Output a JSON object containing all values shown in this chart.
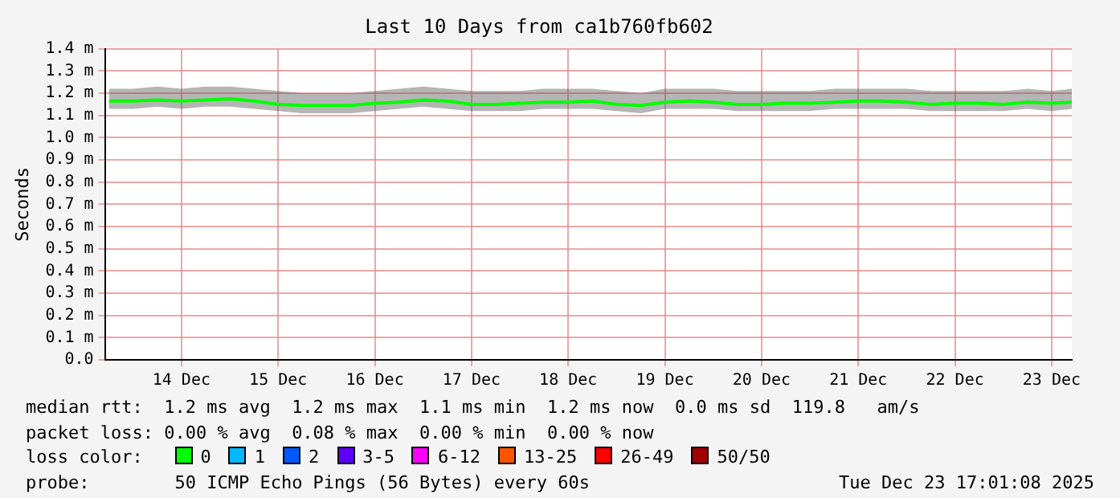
{
  "chart_data": {
    "type": "line",
    "title": "Last 10 Days from ca1b760fb602",
    "ylabel": "Seconds",
    "x": [
      "2025-12-13T18:00",
      "2025-12-14T00:00",
      "2025-12-14T06:00",
      "2025-12-14T12:00",
      "2025-12-14T18:00",
      "2025-12-15T00:00",
      "2025-12-15T06:00",
      "2025-12-15T12:00",
      "2025-12-15T18:00",
      "2025-12-16T00:00",
      "2025-12-16T06:00",
      "2025-12-16T12:00",
      "2025-12-16T18:00",
      "2025-12-17T00:00",
      "2025-12-17T06:00",
      "2025-12-17T12:00",
      "2025-12-17T18:00",
      "2025-12-18T00:00",
      "2025-12-18T06:00",
      "2025-12-18T12:00",
      "2025-12-18T18:00",
      "2025-12-19T00:00",
      "2025-12-19T06:00",
      "2025-12-19T12:00",
      "2025-12-19T18:00",
      "2025-12-20T00:00",
      "2025-12-20T06:00",
      "2025-12-20T12:00",
      "2025-12-20T18:00",
      "2025-12-21T00:00",
      "2025-12-21T06:00",
      "2025-12-21T12:00",
      "2025-12-21T18:00",
      "2025-12-22T00:00",
      "2025-12-22T06:00",
      "2025-12-22T12:00",
      "2025-12-22T18:00",
      "2025-12-23T00:00",
      "2025-12-23T06:00",
      "2025-12-23T12:00",
      "2025-12-23T17:00"
    ],
    "series": [
      {
        "name": "0",
        "color": "#00ff00",
        "values": [
          1.165,
          1.165,
          1.17,
          1.165,
          1.17,
          1.175,
          1.165,
          1.15,
          1.145,
          1.145,
          1.145,
          1.155,
          1.16,
          1.17,
          1.165,
          1.15,
          1.15,
          1.155,
          1.16,
          1.16,
          1.165,
          1.15,
          1.145,
          1.16,
          1.165,
          1.16,
          1.15,
          1.15,
          1.155,
          1.155,
          1.16,
          1.165,
          1.165,
          1.16,
          1.15,
          1.155,
          1.155,
          1.15,
          1.16,
          1.155,
          1.16
        ],
        "lower": [
          1.13,
          1.13,
          1.14,
          1.13,
          1.14,
          1.14,
          1.13,
          1.12,
          1.11,
          1.11,
          1.11,
          1.12,
          1.13,
          1.14,
          1.13,
          1.12,
          1.12,
          1.12,
          1.13,
          1.13,
          1.13,
          1.12,
          1.11,
          1.13,
          1.13,
          1.13,
          1.12,
          1.12,
          1.12,
          1.12,
          1.13,
          1.13,
          1.13,
          1.13,
          1.12,
          1.12,
          1.12,
          1.12,
          1.13,
          1.12,
          1.13
        ],
        "upper": [
          1.22,
          1.22,
          1.23,
          1.22,
          1.23,
          1.23,
          1.22,
          1.21,
          1.2,
          1.2,
          1.2,
          1.21,
          1.22,
          1.23,
          1.22,
          1.21,
          1.21,
          1.21,
          1.22,
          1.22,
          1.22,
          1.21,
          1.2,
          1.22,
          1.22,
          1.22,
          1.21,
          1.21,
          1.21,
          1.21,
          1.22,
          1.22,
          1.22,
          1.22,
          1.21,
          1.21,
          1.21,
          1.21,
          1.22,
          1.21,
          1.22
        ]
      },
      {
        "name": "1",
        "color": "#00b8ff",
        "values": [
          null,
          null,
          null,
          null,
          null,
          null,
          null,
          null,
          null,
          null,
          null,
          null,
          null,
          null,
          null,
          null,
          null,
          null,
          null,
          null,
          null,
          null,
          null,
          null,
          null,
          null,
          null,
          null,
          null,
          null,
          null,
          null,
          null,
          null,
          null,
          null,
          null,
          null,
          null,
          null,
          null
        ]
      },
      {
        "name": "2",
        "color": "#0059ff",
        "values": [
          null,
          null,
          null,
          null,
          null,
          null,
          null,
          null,
          null,
          null,
          null,
          null,
          null,
          null,
          null,
          null,
          null,
          null,
          null,
          null,
          null,
          null,
          null,
          null,
          null,
          null,
          null,
          null,
          null,
          null,
          null,
          null,
          null,
          null,
          null,
          null,
          null,
          null,
          null,
          null,
          null
        ]
      },
      {
        "name": "3-5",
        "color": "#5e00ff",
        "values": [
          null,
          null,
          null,
          null,
          null,
          null,
          null,
          null,
          null,
          null,
          null,
          null,
          null,
          null,
          null,
          null,
          null,
          null,
          null,
          null,
          null,
          null,
          null,
          null,
          null,
          null,
          null,
          null,
          null,
          null,
          null,
          null,
          null,
          null,
          null,
          null,
          null,
          null,
          null,
          null,
          null
        ]
      },
      {
        "name": "6-12",
        "color": "#ff00ff",
        "values": [
          null,
          null,
          null,
          null,
          null,
          null,
          null,
          null,
          null,
          null,
          null,
          null,
          null,
          null,
          null,
          null,
          null,
          null,
          null,
          null,
          null,
          null,
          null,
          null,
          null,
          null,
          null,
          null,
          null,
          null,
          null,
          null,
          null,
          null,
          null,
          null,
          null,
          null,
          null,
          null,
          null
        ]
      },
      {
        "name": "13-25",
        "color": "#ff5500",
        "values": [
          null,
          null,
          null,
          null,
          null,
          null,
          null,
          null,
          null,
          null,
          null,
          null,
          null,
          null,
          null,
          null,
          null,
          null,
          null,
          null,
          null,
          null,
          null,
          null,
          null,
          null,
          null,
          null,
          null,
          null,
          null,
          null,
          null,
          null,
          null,
          null,
          null,
          null,
          null,
          null,
          null
        ]
      },
      {
        "name": "26-49",
        "color": "#ff0000",
        "values": [
          null,
          null,
          null,
          null,
          null,
          null,
          null,
          null,
          null,
          null,
          null,
          null,
          null,
          null,
          null,
          null,
          null,
          null,
          null,
          null,
          null,
          null,
          null,
          null,
          null,
          null,
          null,
          null,
          null,
          null,
          null,
          null,
          null,
          null,
          null,
          null,
          null,
          null,
          null,
          null,
          null
        ]
      },
      {
        "name": "50/50",
        "color": "#a10000",
        "values": [
          null,
          null,
          null,
          null,
          null,
          null,
          null,
          null,
          null,
          null,
          null,
          null,
          null,
          null,
          null,
          null,
          null,
          null,
          null,
          null,
          null,
          null,
          null,
          null,
          null,
          null,
          null,
          null,
          null,
          null,
          null,
          null,
          null,
          null,
          null,
          null,
          null,
          null,
          null,
          null,
          null
        ]
      }
    ],
    "legend": "bottom",
    "legend_title": "loss color:",
    "grid": true,
    "marker": "none",
    "line_style": "solid",
    "xlim": [
      "2025-12-13T17:00",
      "2025-12-23T17:00"
    ],
    "xticks": [
      {
        "value": "2025-12-14T12:00",
        "label": "14 Dec"
      },
      {
        "value": "2025-12-15T12:00",
        "label": "15 Dec"
      },
      {
        "value": "2025-12-16T12:00",
        "label": "16 Dec"
      },
      {
        "value": "2025-12-17T12:00",
        "label": "17 Dec"
      },
      {
        "value": "2025-12-18T12:00",
        "label": "18 Dec"
      },
      {
        "value": "2025-12-19T12:00",
        "label": "19 Dec"
      },
      {
        "value": "2025-12-20T12:00",
        "label": "20 Dec"
      },
      {
        "value": "2025-12-21T12:00",
        "label": "21 Dec"
      },
      {
        "value": "2025-12-22T12:00",
        "label": "22 Dec"
      },
      {
        "value": "2025-12-23T12:00",
        "label": "23 Dec"
      }
    ],
    "ylim": [
      0,
      1.4
    ],
    "yticks": [
      {
        "value": 0,
        "label": "0.0"
      },
      {
        "value": 0.1,
        "label": "0.1 m"
      },
      {
        "value": 0.2,
        "label": "0.2 m"
      },
      {
        "value": 0.3,
        "label": "0.3 m"
      },
      {
        "value": 0.4,
        "label": "0.4 m"
      },
      {
        "value": 0.5,
        "label": "0.5 m"
      },
      {
        "value": 0.6,
        "label": "0.6 m"
      },
      {
        "value": 0.7,
        "label": "0.7 m"
      },
      {
        "value": 0.8,
        "label": "0.8 m"
      },
      {
        "value": 0.9,
        "label": "0.9 m"
      },
      {
        "value": 1.0,
        "label": "1.0 m"
      },
      {
        "value": 1.1,
        "label": "1.1 m"
      },
      {
        "value": 1.2,
        "label": "1.2 m"
      },
      {
        "value": 1.3,
        "label": "1.3 m"
      },
      {
        "value": 1.4,
        "label": "1.4 m"
      }
    ],
    "annotations": [
      "median rtt:  1.2 ms avg  1.2 ms max  1.1 ms min  1.2 ms now  0.0 ms sd  119.8   am/s",
      "packet loss: 0.00 % avg  0.08 % max  0.00 % min  0.00 % now",
      "probe:        50 ICMP Echo Pings (56 Bytes) every 60s",
      "Tue Dec 23 17:01:08 2025"
    ]
  }
}
